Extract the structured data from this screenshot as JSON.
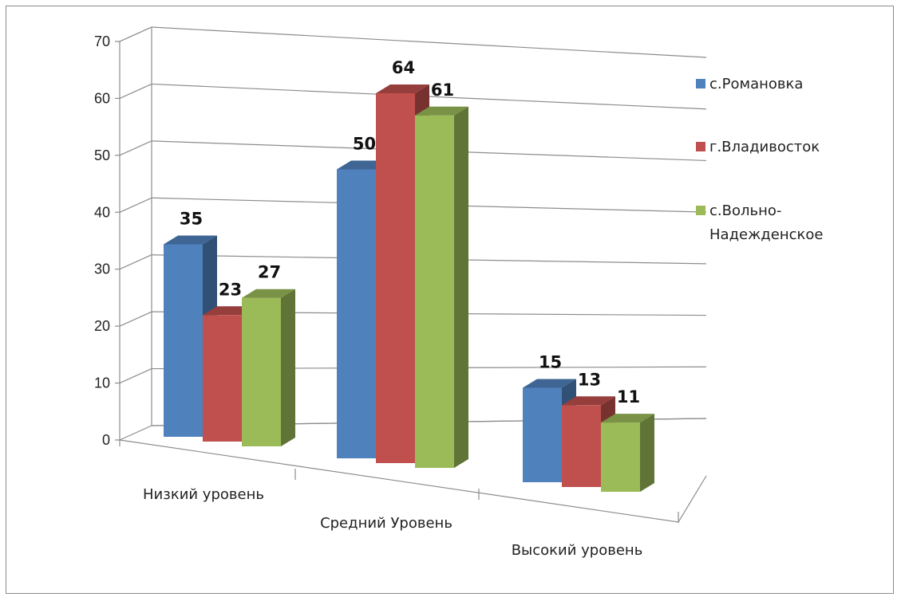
{
  "chart_data": {
    "type": "bar",
    "categories": [
      "Низкий уровень",
      "Средний Уровень",
      "Высокий уровень"
    ],
    "series": [
      {
        "name": "с.Романовка",
        "values": [
          35,
          50,
          15
        ],
        "color": "#4f81bd"
      },
      {
        "name": "г.Владивосток",
        "values": [
          23,
          64,
          13
        ],
        "color": "#c0504d"
      },
      {
        "name": "с.Вольно-Надежденское",
        "values": [
          27,
          61,
          11
        ],
        "color": "#9bbb59"
      }
    ],
    "legend_lines": [
      [
        "с.Романовка"
      ],
      [
        "г.Владивосток"
      ],
      [
        "с.Вольно-",
        "Надежденское"
      ]
    ],
    "ylim": [
      0,
      70
    ],
    "yticks": [
      0,
      10,
      20,
      30,
      40,
      50,
      60,
      70
    ],
    "grid": true,
    "legend_position": "right",
    "style": "3d-clustered-column"
  }
}
